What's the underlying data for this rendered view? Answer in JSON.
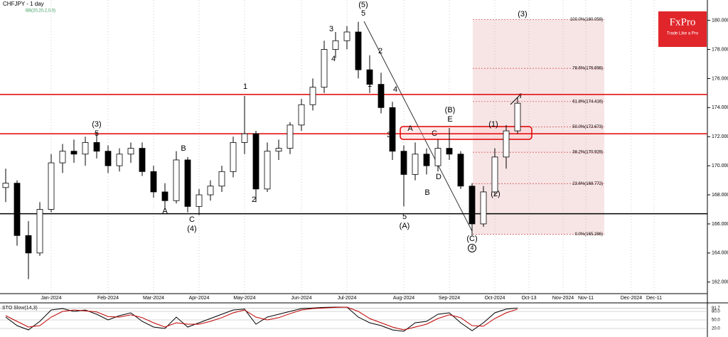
{
  "chart_data": {
    "type": "candlestick",
    "title": "CHFJPY - 1 day",
    "indicator": "BB(20,20,2,0,0)",
    "logo": {
      "brand": "FxPro",
      "tagline": "Trade Like a Pro"
    },
    "categories": [
      null,
      null,
      null,
      null,
      "Jan-2024",
      null,
      null,
      null,
      null,
      "Feb-2024",
      null,
      null,
      null,
      "Mar-2024",
      null,
      null,
      null,
      "Apr-2024",
      null,
      null,
      null,
      "May-2024",
      null,
      null,
      null,
      null,
      "Jun-2024",
      null,
      null,
      null,
      "Jul-2024",
      null,
      null,
      null,
      null,
      "Aug-2024",
      null,
      null,
      null,
      "Sep-2024",
      null,
      null,
      null,
      "Oct-2024",
      null,
      null,
      "Oct-13",
      null,
      null,
      "Nov-2024",
      null,
      "Nov-11",
      null,
      null,
      null,
      "Dec-2024",
      null,
      "Dec-11",
      null,
      null,
      null,
      null
    ],
    "open": [
      168.5,
      168.8,
      165.2,
      164.0,
      167.0,
      170.2,
      171.0,
      170.8,
      171.6,
      171.0,
      170.0,
      170.8,
      171.2,
      169.6,
      168.2,
      167.6,
      170.4,
      167.2,
      168.0,
      168.6,
      169.6,
      171.6,
      172.2,
      168.4,
      171.0,
      171.2,
      172.8,
      174.2,
      175.4,
      178.0,
      178.6,
      179.2,
      176.6,
      175.6,
      174.0,
      171.0,
      169.4,
      170.8,
      170.0,
      171.2,
      170.8,
      168.6,
      166.0,
      168.2,
      170.6,
      172.4,
      null,
      null,
      null,
      null,
      null,
      null,
      null,
      null,
      null,
      null,
      null,
      null,
      null,
      null,
      null,
      null
    ],
    "high": [
      169.8,
      169.0,
      166.2,
      167.5,
      170.8,
      171.5,
      171.8,
      172.0,
      172.3,
      171.4,
      171.2,
      171.6,
      171.6,
      170.0,
      168.8,
      171.0,
      170.6,
      168.4,
      169.0,
      170.0,
      172.0,
      174.8,
      172.4,
      171.6,
      171.8,
      173.0,
      174.6,
      176.0,
      178.6,
      179.2,
      179.6,
      179.9,
      177.6,
      176.4,
      174.4,
      171.4,
      171.6,
      171.2,
      171.8,
      172.6,
      171.0,
      168.8,
      168.6,
      171.2,
      172.8,
      174.7,
      null,
      null,
      null,
      null,
      null,
      null,
      null,
      null,
      null,
      null,
      null,
      null,
      null,
      null,
      null,
      null
    ],
    "low": [
      167.5,
      164.5,
      162.2,
      163.8,
      166.8,
      169.5,
      170.2,
      170.0,
      170.5,
      169.5,
      169.6,
      170.2,
      169.3,
      167.8,
      167.0,
      167.4,
      166.8,
      166.6,
      167.6,
      168.2,
      169.2,
      170.8,
      167.5,
      168.2,
      170.4,
      170.8,
      172.4,
      173.8,
      175.0,
      177.4,
      178.0,
      176.0,
      175.0,
      173.6,
      170.4,
      167.2,
      169.0,
      169.4,
      169.6,
      170.4,
      168.4,
      165.2,
      165.8,
      168.0,
      169.8,
      172.2,
      null,
      null,
      null,
      null,
      null,
      null,
      null,
      null,
      null,
      null,
      null,
      null,
      null,
      null,
      null,
      null
    ],
    "close": [
      168.8,
      165.2,
      164.0,
      167.0,
      170.2,
      171.0,
      170.8,
      171.6,
      171.0,
      170.0,
      170.8,
      171.2,
      169.6,
      168.2,
      167.6,
      170.4,
      167.2,
      168.0,
      168.6,
      169.6,
      171.6,
      172.2,
      168.4,
      171.0,
      171.2,
      172.8,
      174.2,
      175.4,
      178.0,
      178.6,
      179.2,
      176.6,
      175.6,
      174.0,
      171.0,
      169.4,
      170.8,
      170.0,
      171.2,
      170.8,
      168.6,
      166.0,
      168.2,
      170.6,
      172.4,
      174.3,
      null,
      null,
      null,
      null,
      null,
      null,
      null,
      null,
      null,
      null,
      null,
      null,
      null,
      null,
      null,
      null
    ],
    "ylim": [
      161.4,
      181.4
    ],
    "yticks": [
      {
        "value": 162,
        "label": "162.000"
      },
      {
        "value": 164,
        "label": "164.000"
      },
      {
        "value": 166,
        "label": "166.000"
      },
      {
        "value": 168,
        "label": "168.000"
      },
      {
        "value": 170,
        "label": "170.000"
      },
      {
        "value": 172,
        "label": "172.000"
      },
      {
        "value": 174,
        "label": "174.000"
      },
      {
        "value": 176,
        "label": "176.000"
      },
      {
        "value": 178,
        "label": "178.000"
      },
      {
        "value": 180,
        "label": "180.000"
      }
    ],
    "grid": true,
    "levels": [
      {
        "value": 174.9,
        "color": "#e00000"
      },
      {
        "value": 172.2,
        "color": "#e00000"
      },
      {
        "value": 166.7,
        "color": "#000000"
      }
    ],
    "fib": [
      {
        "value": 180.059,
        "label": "100.0%(180.059)"
      },
      {
        "value": 176.698,
        "label": "78.6%(176.698)"
      },
      {
        "value": 174.416,
        "label": "61.8%(174.416)"
      },
      {
        "value": 172.673,
        "label": "50.0%(172.673)"
      },
      {
        "value": 170.929,
        "label": "38.2%(170.929)"
      },
      {
        "value": 168.772,
        "label": "23.6%(168.772)"
      },
      {
        "value": 165.286,
        "label": "0.0%(165.286)"
      }
    ],
    "annotations": [
      "(5)",
      "5",
      "3",
      "4",
      "2",
      "1",
      "4",
      "3",
      "5",
      "(A)",
      "(B)",
      "E",
      "A",
      "C",
      "D",
      "B",
      "(C)",
      "4",
      "(1)",
      "(2)",
      "(3)",
      "1",
      "2",
      "(3)",
      "5",
      "B",
      "A",
      "C",
      "(4)"
    ],
    "sto": {
      "title": "STO Slow(14,3)",
      "ylim": [
        0,
        100
      ],
      "yticks": [
        {
          "value": 91.7,
          "label": "91.7"
        },
        {
          "value": 80,
          "label": "80.0"
        },
        {
          "value": 50,
          "label": "50.0"
        },
        {
          "value": 20,
          "label": "20.0"
        }
      ],
      "series": [
        {
          "color": "#000000",
          "values": [
            60,
            30,
            15,
            45,
            85,
            90,
            80,
            85,
            70,
            50,
            65,
            75,
            45,
            25,
            20,
            60,
            25,
            40,
            55,
            70,
            85,
            88,
            35,
            60,
            70,
            80,
            90,
            92,
            94,
            95,
            95,
            60,
            40,
            30,
            15,
            10,
            40,
            45,
            70,
            75,
            40,
            12,
            40,
            75,
            88,
            92,
            null,
            null,
            null,
            null,
            null,
            null,
            null,
            null,
            null,
            null,
            null,
            null,
            null,
            null,
            null,
            null
          ]
        },
        {
          "color": "#c00000",
          "values": [
            65,
            45,
            25,
            30,
            60,
            80,
            85,
            82,
            78,
            62,
            60,
            68,
            58,
            40,
            25,
            40,
            35,
            35,
            45,
            58,
            75,
            85,
            60,
            50,
            58,
            72,
            85,
            90,
            92,
            94,
            95,
            80,
            55,
            40,
            25,
            15,
            25,
            35,
            55,
            68,
            58,
            30,
            28,
            55,
            75,
            88,
            null,
            null,
            null,
            null,
            null,
            null,
            null,
            null,
            null,
            null,
            null,
            null,
            null,
            null,
            null,
            null
          ]
        }
      ]
    }
  }
}
